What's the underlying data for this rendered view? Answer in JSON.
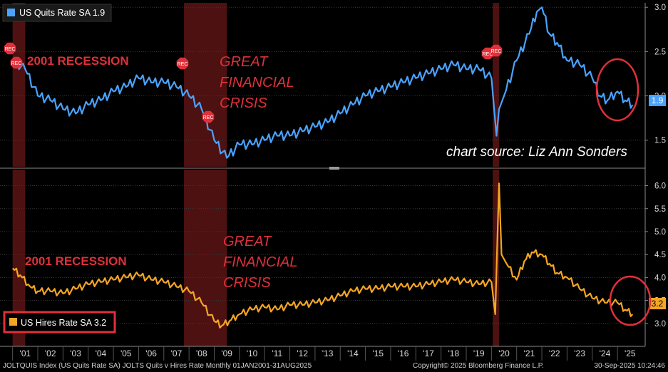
{
  "chart_data": [
    {
      "type": "line",
      "title": "US Quits Rate SA",
      "legend_label": "US Quits Rate SA 1.9",
      "last_value_label": "1.9",
      "color": "#4aa3ff",
      "ylim": [
        1.2,
        3.05
      ],
      "yticks": [
        1.5,
        2.0,
        2.5,
        3.0
      ],
      "ytick_labels": [
        "1.5",
        "2.0",
        "2.5",
        "3.0"
      ],
      "x": [
        2001.0,
        2001.5,
        2002.0,
        2002.5,
        2003.0,
        2003.5,
        2004.0,
        2004.5,
        2005.0,
        2005.5,
        2006.0,
        2006.5,
        2007.0,
        2007.5,
        2008.0,
        2008.5,
        2009.0,
        2009.5,
        2010.0,
        2010.5,
        2011.0,
        2011.5,
        2012.0,
        2012.5,
        2013.0,
        2013.5,
        2014.0,
        2014.5,
        2015.0,
        2015.5,
        2016.0,
        2016.5,
        2017.0,
        2017.5,
        2018.0,
        2018.5,
        2019.0,
        2019.5,
        2020.0,
        2020.2,
        2020.3,
        2020.5,
        2021.0,
        2021.5,
        2021.8,
        2022.0,
        2022.3,
        2022.6,
        2023.0,
        2023.5,
        2024.0,
        2024.3,
        2024.6,
        2025.0,
        2025.3,
        2025.6
      ],
      "values": [
        2.4,
        2.3,
        2.0,
        1.95,
        1.85,
        1.8,
        1.9,
        1.95,
        2.05,
        2.1,
        2.2,
        2.15,
        2.15,
        2.1,
        2.0,
        1.85,
        1.5,
        1.3,
        1.45,
        1.45,
        1.5,
        1.55,
        1.55,
        1.6,
        1.65,
        1.7,
        1.8,
        1.9,
        2.0,
        2.05,
        2.1,
        2.15,
        2.2,
        2.25,
        2.3,
        2.35,
        2.3,
        2.3,
        2.2,
        1.55,
        1.85,
        2.0,
        2.4,
        2.7,
        2.95,
        3.0,
        2.7,
        2.6,
        2.4,
        2.35,
        2.2,
        2.0,
        1.95,
        2.05,
        1.95,
        1.9
      ]
    },
    {
      "type": "line",
      "title": "US Hires Rate SA",
      "legend_label": "US Hires Rate SA 3.2",
      "last_value_label": "3.2",
      "color": "#f5a623",
      "ylim": [
        2.5,
        6.35
      ],
      "yticks": [
        3.0,
        3.5,
        4.0,
        4.5,
        5.0,
        5.5,
        6.0
      ],
      "ytick_labels": [
        "3.0",
        "3.5",
        "4.0",
        "4.5",
        "5.0",
        "5.5",
        "6.0"
      ],
      "x": [
        2001.0,
        2001.3,
        2001.7,
        2002.0,
        2002.5,
        2003.0,
        2003.5,
        2004.0,
        2004.5,
        2005.0,
        2005.5,
        2006.0,
        2006.5,
        2007.0,
        2007.5,
        2008.0,
        2008.5,
        2009.0,
        2009.3,
        2009.6,
        2010.0,
        2010.5,
        2011.0,
        2011.5,
        2012.0,
        2012.5,
        2013.0,
        2013.5,
        2014.0,
        2014.5,
        2015.0,
        2015.5,
        2016.0,
        2016.5,
        2017.0,
        2017.5,
        2018.0,
        2018.5,
        2019.0,
        2019.5,
        2020.0,
        2020.15,
        2020.3,
        2020.4,
        2020.6,
        2021.0,
        2021.3,
        2021.6,
        2022.0,
        2022.3,
        2022.6,
        2023.0,
        2023.5,
        2024.0,
        2024.5,
        2025.0,
        2025.3,
        2025.6
      ],
      "values": [
        4.2,
        4.05,
        3.8,
        3.7,
        3.7,
        3.65,
        3.75,
        3.85,
        3.9,
        3.95,
        4.0,
        4.05,
        3.95,
        3.9,
        3.8,
        3.7,
        3.45,
        3.05,
        2.95,
        3.05,
        3.2,
        3.3,
        3.35,
        3.3,
        3.4,
        3.4,
        3.45,
        3.5,
        3.6,
        3.7,
        3.75,
        3.75,
        3.8,
        3.8,
        3.8,
        3.85,
        3.9,
        3.95,
        3.9,
        3.85,
        3.9,
        3.2,
        6.05,
        4.5,
        4.3,
        3.95,
        4.35,
        4.55,
        4.5,
        4.3,
        4.1,
        4.0,
        3.75,
        3.55,
        3.45,
        3.45,
        3.3,
        3.2
      ]
    }
  ],
  "x_axis": {
    "ticks": [
      "'01",
      "'02",
      "'03",
      "'04",
      "'05",
      "'06",
      "'07",
      "'08",
      "'09",
      "'10",
      "'11",
      "'12",
      "'13",
      "'14",
      "'15",
      "'16",
      "'17",
      "'18",
      "'19",
      "'20",
      "'21",
      "'22",
      "'23",
      "'24",
      "'25"
    ],
    "xlim": [
      2000.5,
      2026.1
    ]
  },
  "recessions": [
    {
      "start": 2001.0,
      "end": 2001.5
    },
    {
      "start": 2007.8,
      "end": 2009.5
    },
    {
      "start": 2020.05,
      "end": 2020.3
    }
  ],
  "rec_markers": [
    "REC",
    "REC",
    "REC",
    "REC",
    "REC",
    "REC"
  ],
  "annotations": {
    "recession_2001": "2001 RECESSION",
    "gfc_line1": "GREAT",
    "gfc_line2": "FINANCIAL",
    "gfc_line3": "CRISIS",
    "source": "chart source: Liz Ann Sonders"
  },
  "footer": {
    "left": "JOLTQUIS Index (US Quits Rate SA) JOLTS Quits v Hires Rate  Monthly 01JAN2001-31AUG2025",
    "center": "Copyright© 2025 Bloomberg Finance L.P.",
    "right": "30-Sep-2025 10:24:46"
  },
  "colors": {
    "background": "#000000",
    "grid": "#3a3a3a",
    "recession": "#5a1414",
    "annotation": "#e0303a",
    "quits": "#4aa3ff",
    "hires": "#f5a623"
  }
}
